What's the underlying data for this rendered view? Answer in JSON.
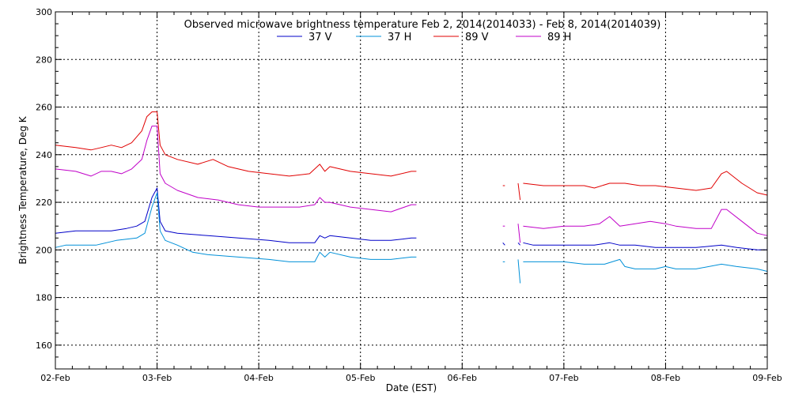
{
  "chart_data": {
    "type": "line",
    "title": "Observed microwave brightness temperature Feb  2, 2014(2014033) - Feb  8, 2014(2014039)",
    "xlabel": "Date (EST)",
    "ylabel": "Brightness Temperature, Deg K",
    "xlim": [
      "02-Feb",
      "09-Feb"
    ],
    "ylim": [
      150,
      300
    ],
    "x_ticks": [
      "02-Feb",
      "03-Feb",
      "04-Feb",
      "05-Feb",
      "06-Feb",
      "07-Feb",
      "08-Feb",
      "09-Feb"
    ],
    "y_ticks": [
      160,
      180,
      200,
      220,
      240,
      260,
      280,
      300
    ],
    "grid": true,
    "legend_position": "top-center",
    "series": [
      {
        "name": "37 V",
        "color": "#0000c8",
        "segments": [
          [
            [
              0.0,
              207
            ],
            [
              0.2,
              208
            ],
            [
              0.4,
              208
            ],
            [
              0.55,
              208
            ],
            [
              0.7,
              209
            ],
            [
              0.8,
              210
            ],
            [
              0.88,
              212
            ],
            [
              0.95,
              222
            ],
            [
              1.0,
              226
            ],
            [
              1.03,
              212
            ],
            [
              1.08,
              208
            ],
            [
              1.2,
              207
            ],
            [
              1.5,
              206
            ],
            [
              1.8,
              205
            ],
            [
              2.1,
              204
            ],
            [
              2.3,
              203
            ],
            [
              2.55,
              203
            ],
            [
              2.6,
              206
            ],
            [
              2.65,
              205
            ],
            [
              2.7,
              206
            ],
            [
              2.9,
              205
            ],
            [
              3.1,
              204
            ],
            [
              3.3,
              204
            ],
            [
              3.5,
              205
            ],
            [
              3.55,
              205
            ]
          ],
          [
            [
              4.4,
              203
            ],
            [
              4.42,
              202
            ]
          ],
          [
            [
              4.55,
              203
            ],
            [
              4.57,
              202
            ]
          ],
          [
            [
              4.6,
              203
            ],
            [
              4.7,
              202
            ],
            [
              4.9,
              202
            ],
            [
              5.1,
              202
            ],
            [
              5.3,
              202
            ],
            [
              5.45,
              203
            ],
            [
              5.55,
              202
            ],
            [
              5.7,
              202
            ],
            [
              5.9,
              201
            ],
            [
              6.1,
              201
            ],
            [
              6.3,
              201
            ],
            [
              6.55,
              202
            ],
            [
              6.7,
              201
            ],
            [
              6.9,
              200
            ],
            [
              7.0,
              200
            ]
          ]
        ]
      },
      {
        "name": "37 H",
        "color": "#0090d8",
        "segments": [
          [
            [
              0.0,
              201
            ],
            [
              0.1,
              202
            ],
            [
              0.2,
              202
            ],
            [
              0.4,
              202
            ],
            [
              0.6,
              204
            ],
            [
              0.8,
              205
            ],
            [
              0.88,
              207
            ],
            [
              0.95,
              218
            ],
            [
              1.0,
              224
            ],
            [
              1.03,
              208
            ],
            [
              1.08,
              204
            ],
            [
              1.2,
              202
            ],
            [
              1.35,
              199
            ],
            [
              1.5,
              198
            ],
            [
              1.8,
              197
            ],
            [
              2.1,
              196
            ],
            [
              2.3,
              195
            ],
            [
              2.55,
              195
            ],
            [
              2.6,
              199
            ],
            [
              2.65,
              197
            ],
            [
              2.7,
              199
            ],
            [
              2.9,
              197
            ],
            [
              3.1,
              196
            ],
            [
              3.3,
              196
            ],
            [
              3.5,
              197
            ],
            [
              3.55,
              197
            ]
          ],
          [
            [
              4.4,
              195
            ],
            [
              4.42,
              195
            ]
          ],
          [
            [
              4.55,
              196
            ],
            [
              4.57,
              186
            ]
          ],
          [
            [
              4.6,
              195
            ],
            [
              4.8,
              195
            ],
            [
              5.0,
              195
            ],
            [
              5.2,
              194
            ],
            [
              5.4,
              194
            ],
            [
              5.55,
              196
            ],
            [
              5.6,
              193
            ],
            [
              5.7,
              192
            ],
            [
              5.9,
              192
            ],
            [
              6.0,
              193
            ],
            [
              6.1,
              192
            ],
            [
              6.3,
              192
            ],
            [
              6.55,
              194
            ],
            [
              6.7,
              193
            ],
            [
              6.9,
              192
            ],
            [
              7.0,
              191
            ]
          ]
        ]
      },
      {
        "name": "89 V",
        "color": "#e00000",
        "segments": [
          [
            [
              0.0,
              244
            ],
            [
              0.2,
              243
            ],
            [
              0.35,
              242
            ],
            [
              0.45,
              243
            ],
            [
              0.55,
              244
            ],
            [
              0.65,
              243
            ],
            [
              0.75,
              245
            ],
            [
              0.85,
              250
            ],
            [
              0.9,
              256
            ],
            [
              0.95,
              258
            ],
            [
              1.0,
              258
            ],
            [
              1.03,
              244
            ],
            [
              1.08,
              240
            ],
            [
              1.2,
              238
            ],
            [
              1.4,
              236
            ],
            [
              1.55,
              238
            ],
            [
              1.7,
              235
            ],
            [
              1.9,
              233
            ],
            [
              2.1,
              232
            ],
            [
              2.3,
              231
            ],
            [
              2.5,
              232
            ],
            [
              2.6,
              236
            ],
            [
              2.65,
              233
            ],
            [
              2.7,
              235
            ],
            [
              2.9,
              233
            ],
            [
              3.1,
              232
            ],
            [
              3.3,
              231
            ],
            [
              3.5,
              233
            ],
            [
              3.55,
              233
            ]
          ],
          [
            [
              4.4,
              227
            ],
            [
              4.42,
              227
            ]
          ],
          [
            [
              4.55,
              228
            ],
            [
              4.57,
              221
            ]
          ],
          [
            [
              4.6,
              228
            ],
            [
              4.8,
              227
            ],
            [
              5.0,
              227
            ],
            [
              5.2,
              227
            ],
            [
              5.3,
              226
            ],
            [
              5.45,
              228
            ],
            [
              5.6,
              228
            ],
            [
              5.75,
              227
            ],
            [
              5.9,
              227
            ],
            [
              6.1,
              226
            ],
            [
              6.3,
              225
            ],
            [
              6.45,
              226
            ],
            [
              6.55,
              232
            ],
            [
              6.6,
              233
            ],
            [
              6.75,
              228
            ],
            [
              6.9,
              224
            ],
            [
              7.0,
              223
            ]
          ]
        ]
      },
      {
        "name": "89 H",
        "color": "#c000c8",
        "segments": [
          [
            [
              0.0,
              234
            ],
            [
              0.2,
              233
            ],
            [
              0.35,
              231
            ],
            [
              0.45,
              233
            ],
            [
              0.55,
              233
            ],
            [
              0.65,
              232
            ],
            [
              0.75,
              234
            ],
            [
              0.85,
              238
            ],
            [
              0.9,
              246
            ],
            [
              0.95,
              252
            ],
            [
              1.0,
              252
            ],
            [
              1.03,
              232
            ],
            [
              1.08,
              228
            ],
            [
              1.2,
              225
            ],
            [
              1.4,
              222
            ],
            [
              1.6,
              221
            ],
            [
              1.8,
              219
            ],
            [
              2.0,
              218
            ],
            [
              2.2,
              218
            ],
            [
              2.4,
              218
            ],
            [
              2.55,
              219
            ],
            [
              2.6,
              222
            ],
            [
              2.65,
              220
            ],
            [
              2.7,
              220
            ],
            [
              2.9,
              218
            ],
            [
              3.1,
              217
            ],
            [
              3.3,
              216
            ],
            [
              3.5,
              219
            ],
            [
              3.55,
              219
            ]
          ],
          [
            [
              4.4,
              210
            ],
            [
              4.42,
              210
            ]
          ],
          [
            [
              4.55,
              211
            ],
            [
              4.57,
              203
            ]
          ],
          [
            [
              4.6,
              210
            ],
            [
              4.8,
              209
            ],
            [
              5.0,
              210
            ],
            [
              5.2,
              210
            ],
            [
              5.35,
              211
            ],
            [
              5.45,
              214
            ],
            [
              5.55,
              210
            ],
            [
              5.7,
              211
            ],
            [
              5.85,
              212
            ],
            [
              6.0,
              211
            ],
            [
              6.1,
              210
            ],
            [
              6.3,
              209
            ],
            [
              6.45,
              209
            ],
            [
              6.55,
              217
            ],
            [
              6.6,
              217
            ],
            [
              6.75,
              212
            ],
            [
              6.9,
              207
            ],
            [
              7.0,
              206
            ]
          ]
        ]
      }
    ]
  }
}
